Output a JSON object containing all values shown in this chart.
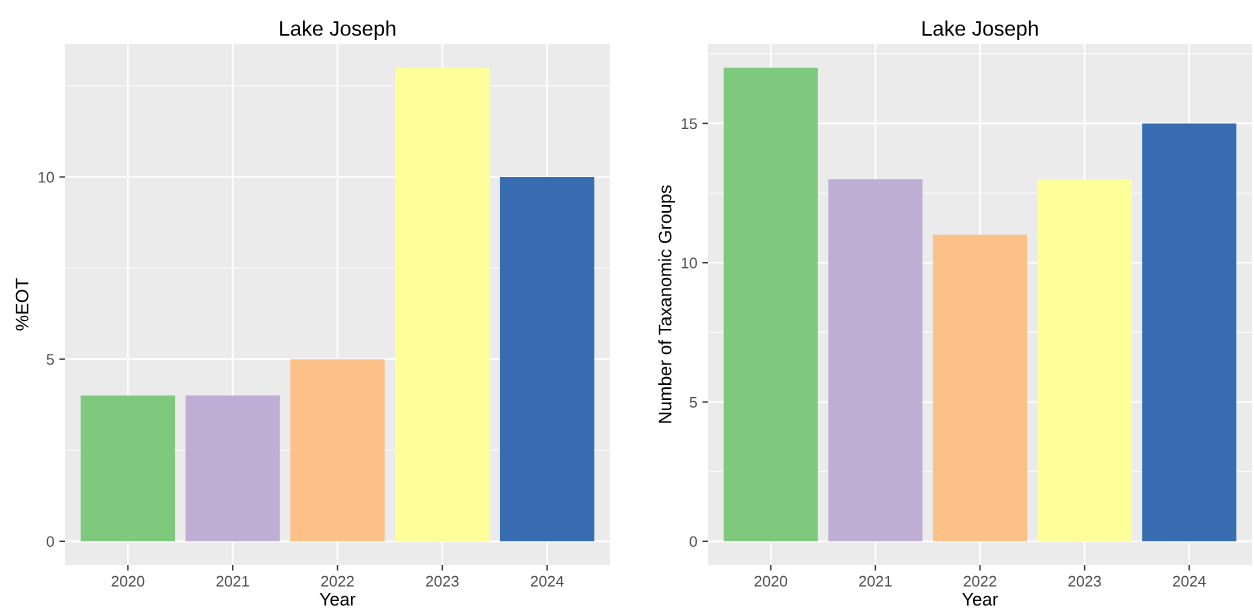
{
  "chart_data": [
    {
      "type": "bar",
      "title": "Lake Joseph",
      "xlabel": "Year",
      "ylabel": "%EOT",
      "categories": [
        "2020",
        "2021",
        "2022",
        "2023",
        "2024"
      ],
      "values": [
        4,
        4,
        5,
        13,
        10
      ],
      "colors": [
        "#7fc97f",
        "#beaed4",
        "#fdc086",
        "#ffff99",
        "#386cb0"
      ],
      "ylim": [
        -0.65,
        13.65
      ],
      "yticks": [
        0,
        5,
        10
      ],
      "grid": true,
      "legend": false
    },
    {
      "type": "bar",
      "title": "Lake Joseph",
      "xlabel": "Year",
      "ylabel": "Number of Taxanomic Groups",
      "categories": [
        "2020",
        "2021",
        "2022",
        "2023",
        "2024"
      ],
      "values": [
        17,
        13,
        11,
        13,
        15
      ],
      "colors": [
        "#7fc97f",
        "#beaed4",
        "#fdc086",
        "#ffff99",
        "#386cb0"
      ],
      "ylim": [
        -0.85,
        17.85
      ],
      "yticks": [
        0,
        5,
        10,
        15
      ],
      "grid": true,
      "legend": false
    }
  ]
}
